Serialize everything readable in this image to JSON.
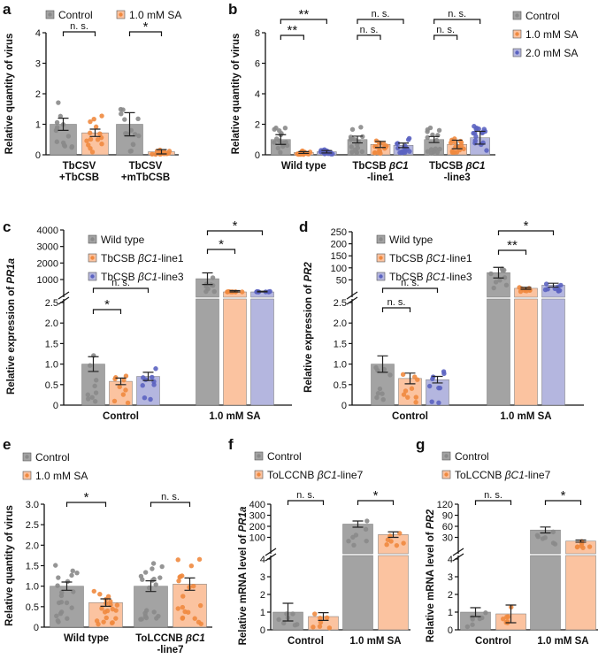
{
  "colors": {
    "gray": "#a3a3a3",
    "gray_dot": "#8a8a8a",
    "orange": "#fbc3a0",
    "orange_dot": "#f0893f",
    "blue": "#b4b6df",
    "blue_dot": "#5b63c1",
    "axis": "#111111"
  },
  "chart_data": [
    {
      "id": "a",
      "type": "bar",
      "ylabel": "Relative quantity of virus",
      "ylim": [
        0,
        4
      ],
      "yticks": [
        "0",
        "1",
        "2",
        "3",
        "4"
      ],
      "legend": [
        "Control",
        "1.0 mM SA"
      ],
      "categories": [
        [
          "TbCSV",
          "+TbCSB"
        ],
        [
          "TbCSV",
          "+mTbCSB"
        ]
      ],
      "series": [
        {
          "name": "Control",
          "values": [
            1.0,
            1.0
          ],
          "sem": [
            0.2,
            0.38
          ]
        },
        {
          "name": "1.0 mM SA",
          "values": [
            0.72,
            0.1
          ],
          "sem": [
            0.12,
            0.07
          ]
        }
      ],
      "significance": [
        "n. s.",
        "*"
      ]
    },
    {
      "id": "b",
      "type": "bar",
      "ylabel": "Relative quantity of virus",
      "ylim": [
        0,
        8
      ],
      "yticks": [
        "0",
        "2",
        "4",
        "6",
        "8"
      ],
      "legend": [
        "Control",
        "1.0 mM SA",
        "2.0 mM SA"
      ],
      "categories": [
        [
          "Wild type"
        ],
        [
          "TbCSB βC1",
          "-line1"
        ],
        [
          "TbCSB βC1",
          "-line3"
        ]
      ],
      "series": [
        {
          "name": "Control",
          "values": [
            1.0,
            1.0,
            1.0
          ],
          "sem": [
            0.32,
            0.22,
            0.2
          ]
        },
        {
          "name": "1.0 mM SA",
          "values": [
            0.15,
            0.68,
            0.68
          ],
          "sem": [
            0.06,
            0.2,
            0.28
          ]
        },
        {
          "name": "2.0 mM SA",
          "values": [
            0.2,
            0.62,
            1.12
          ],
          "sem": [
            0.08,
            0.15,
            0.42
          ]
        }
      ],
      "significance": [
        "**",
        "**",
        "n. s.",
        "n. s.",
        "n. s.",
        "n. s."
      ]
    },
    {
      "id": "c",
      "type": "bar",
      "ylabel": "Relative expression of PR1a",
      "lower_ylim": [
        0,
        2.5
      ],
      "lower_yticks": [
        "0",
        "0.5",
        "1.0",
        "1.5",
        "2.0",
        "2.5"
      ],
      "upper_ylim": [
        0,
        4000
      ],
      "upper_yticks": [
        "1000",
        "2000",
        "3000",
        "4000"
      ],
      "legend": [
        "Wild type",
        "TbCSB βC1-line1",
        "TbCSB βC1-line3"
      ],
      "categories": [
        "Control",
        "1.0 mM SA"
      ],
      "series": [
        {
          "name": "Wild type",
          "values": [
            1.0,
            1050
          ],
          "sem": [
            0.18,
            350
          ]
        },
        {
          "name": "TbCSB βC1-line1",
          "values": [
            0.58,
            240
          ],
          "sem": [
            0.08,
            90
          ]
        },
        {
          "name": "TbCSB βC1-line3",
          "values": [
            0.7,
            230
          ],
          "sem": [
            0.1,
            60
          ]
        }
      ],
      "significance": [
        "*",
        "n. s.",
        "*",
        "*"
      ]
    },
    {
      "id": "d",
      "type": "bar",
      "ylabel": "Relative expression of PR2",
      "lower_ylim": [
        0,
        2.5
      ],
      "lower_yticks": [
        "0",
        "0.5",
        "1.0",
        "1.5",
        "2.0",
        "2.5"
      ],
      "upper_ylim": [
        0,
        250
      ],
      "upper_yticks": [
        "50",
        "100",
        "150",
        "200",
        "250"
      ],
      "legend": [
        "Wild type",
        "TbCSB βC1-line1",
        "TbCSB βC1-line3"
      ],
      "categories": [
        "Control",
        "1.0 mM SA"
      ],
      "series": [
        {
          "name": "Wild type",
          "values": [
            1.0,
            80
          ],
          "sem": [
            0.2,
            22
          ]
        },
        {
          "name": "TbCSB βC1-line1",
          "values": [
            0.65,
            15
          ],
          "sem": [
            0.13,
            4
          ]
        },
        {
          "name": "TbCSB βC1-line3",
          "values": [
            0.62,
            28
          ],
          "sem": [
            0.08,
            8
          ]
        }
      ],
      "significance": [
        "n. s.",
        "n. s.",
        "**",
        "*"
      ]
    },
    {
      "id": "e",
      "type": "bar",
      "ylabel": "Relative quantity of virus",
      "ylim": [
        0,
        3.0
      ],
      "yticks": [
        "0",
        "0.5",
        "1.0",
        "1.5",
        "2.0",
        "2.5",
        "3.0"
      ],
      "legend": [
        "Control",
        "1.0 mM SA"
      ],
      "categories": [
        [
          "Wild type"
        ],
        [
          "ToLCCNB βC1",
          "-line7"
        ]
      ],
      "series": [
        {
          "name": "Control",
          "values": [
            1.0,
            1.0
          ],
          "sem": [
            0.1,
            0.13
          ]
        },
        {
          "name": "1.0 mM SA",
          "values": [
            0.6,
            1.05
          ],
          "sem": [
            0.09,
            0.15
          ]
        }
      ],
      "significance": [
        "*",
        "n. s."
      ]
    },
    {
      "id": "f",
      "type": "bar",
      "ylabel": "Relative mRNA level of PR1a",
      "lower_ylim": [
        0,
        4
      ],
      "lower_yticks": [
        "0",
        "1",
        "2",
        "3",
        "4"
      ],
      "upper_ylim": [
        0,
        400
      ],
      "upper_yticks": [
        "100",
        "200",
        "300",
        "400"
      ],
      "legend": [
        "Control",
        "ToLCCNB βC1-line7"
      ],
      "categories": [
        "Control",
        "1.0 mM SA"
      ],
      "series": [
        {
          "name": "Control",
          "values": [
            1.0,
            220
          ],
          "sem": [
            0.5,
            28
          ]
        },
        {
          "name": "ToLCCNB βC1-line7",
          "values": [
            0.75,
            125
          ],
          "sem": [
            0.22,
            25
          ]
        }
      ],
      "significance": [
        "n. s.",
        "*"
      ]
    },
    {
      "id": "g",
      "type": "bar",
      "ylabel": "Relative mRNA level of PR2",
      "lower_ylim": [
        0,
        4
      ],
      "lower_yticks": [
        "0",
        "1",
        "2",
        "3",
        "4"
      ],
      "upper_ylim": [
        0,
        120
      ],
      "upper_yticks": [
        "30",
        "60",
        "90",
        "120"
      ],
      "legend": [
        "Control",
        "ToLCCNB βC1-line7"
      ],
      "categories": [
        "Control",
        "1.0 mM SA"
      ],
      "series": [
        {
          "name": "Control",
          "values": [
            1.0,
            50
          ],
          "sem": [
            0.25,
            8
          ]
        },
        {
          "name": "ToLCCNB βC1-line7",
          "values": [
            0.9,
            20
          ],
          "sem": [
            0.5,
            3
          ]
        }
      ],
      "significance": [
        "n. s.",
        "*"
      ]
    }
  ]
}
